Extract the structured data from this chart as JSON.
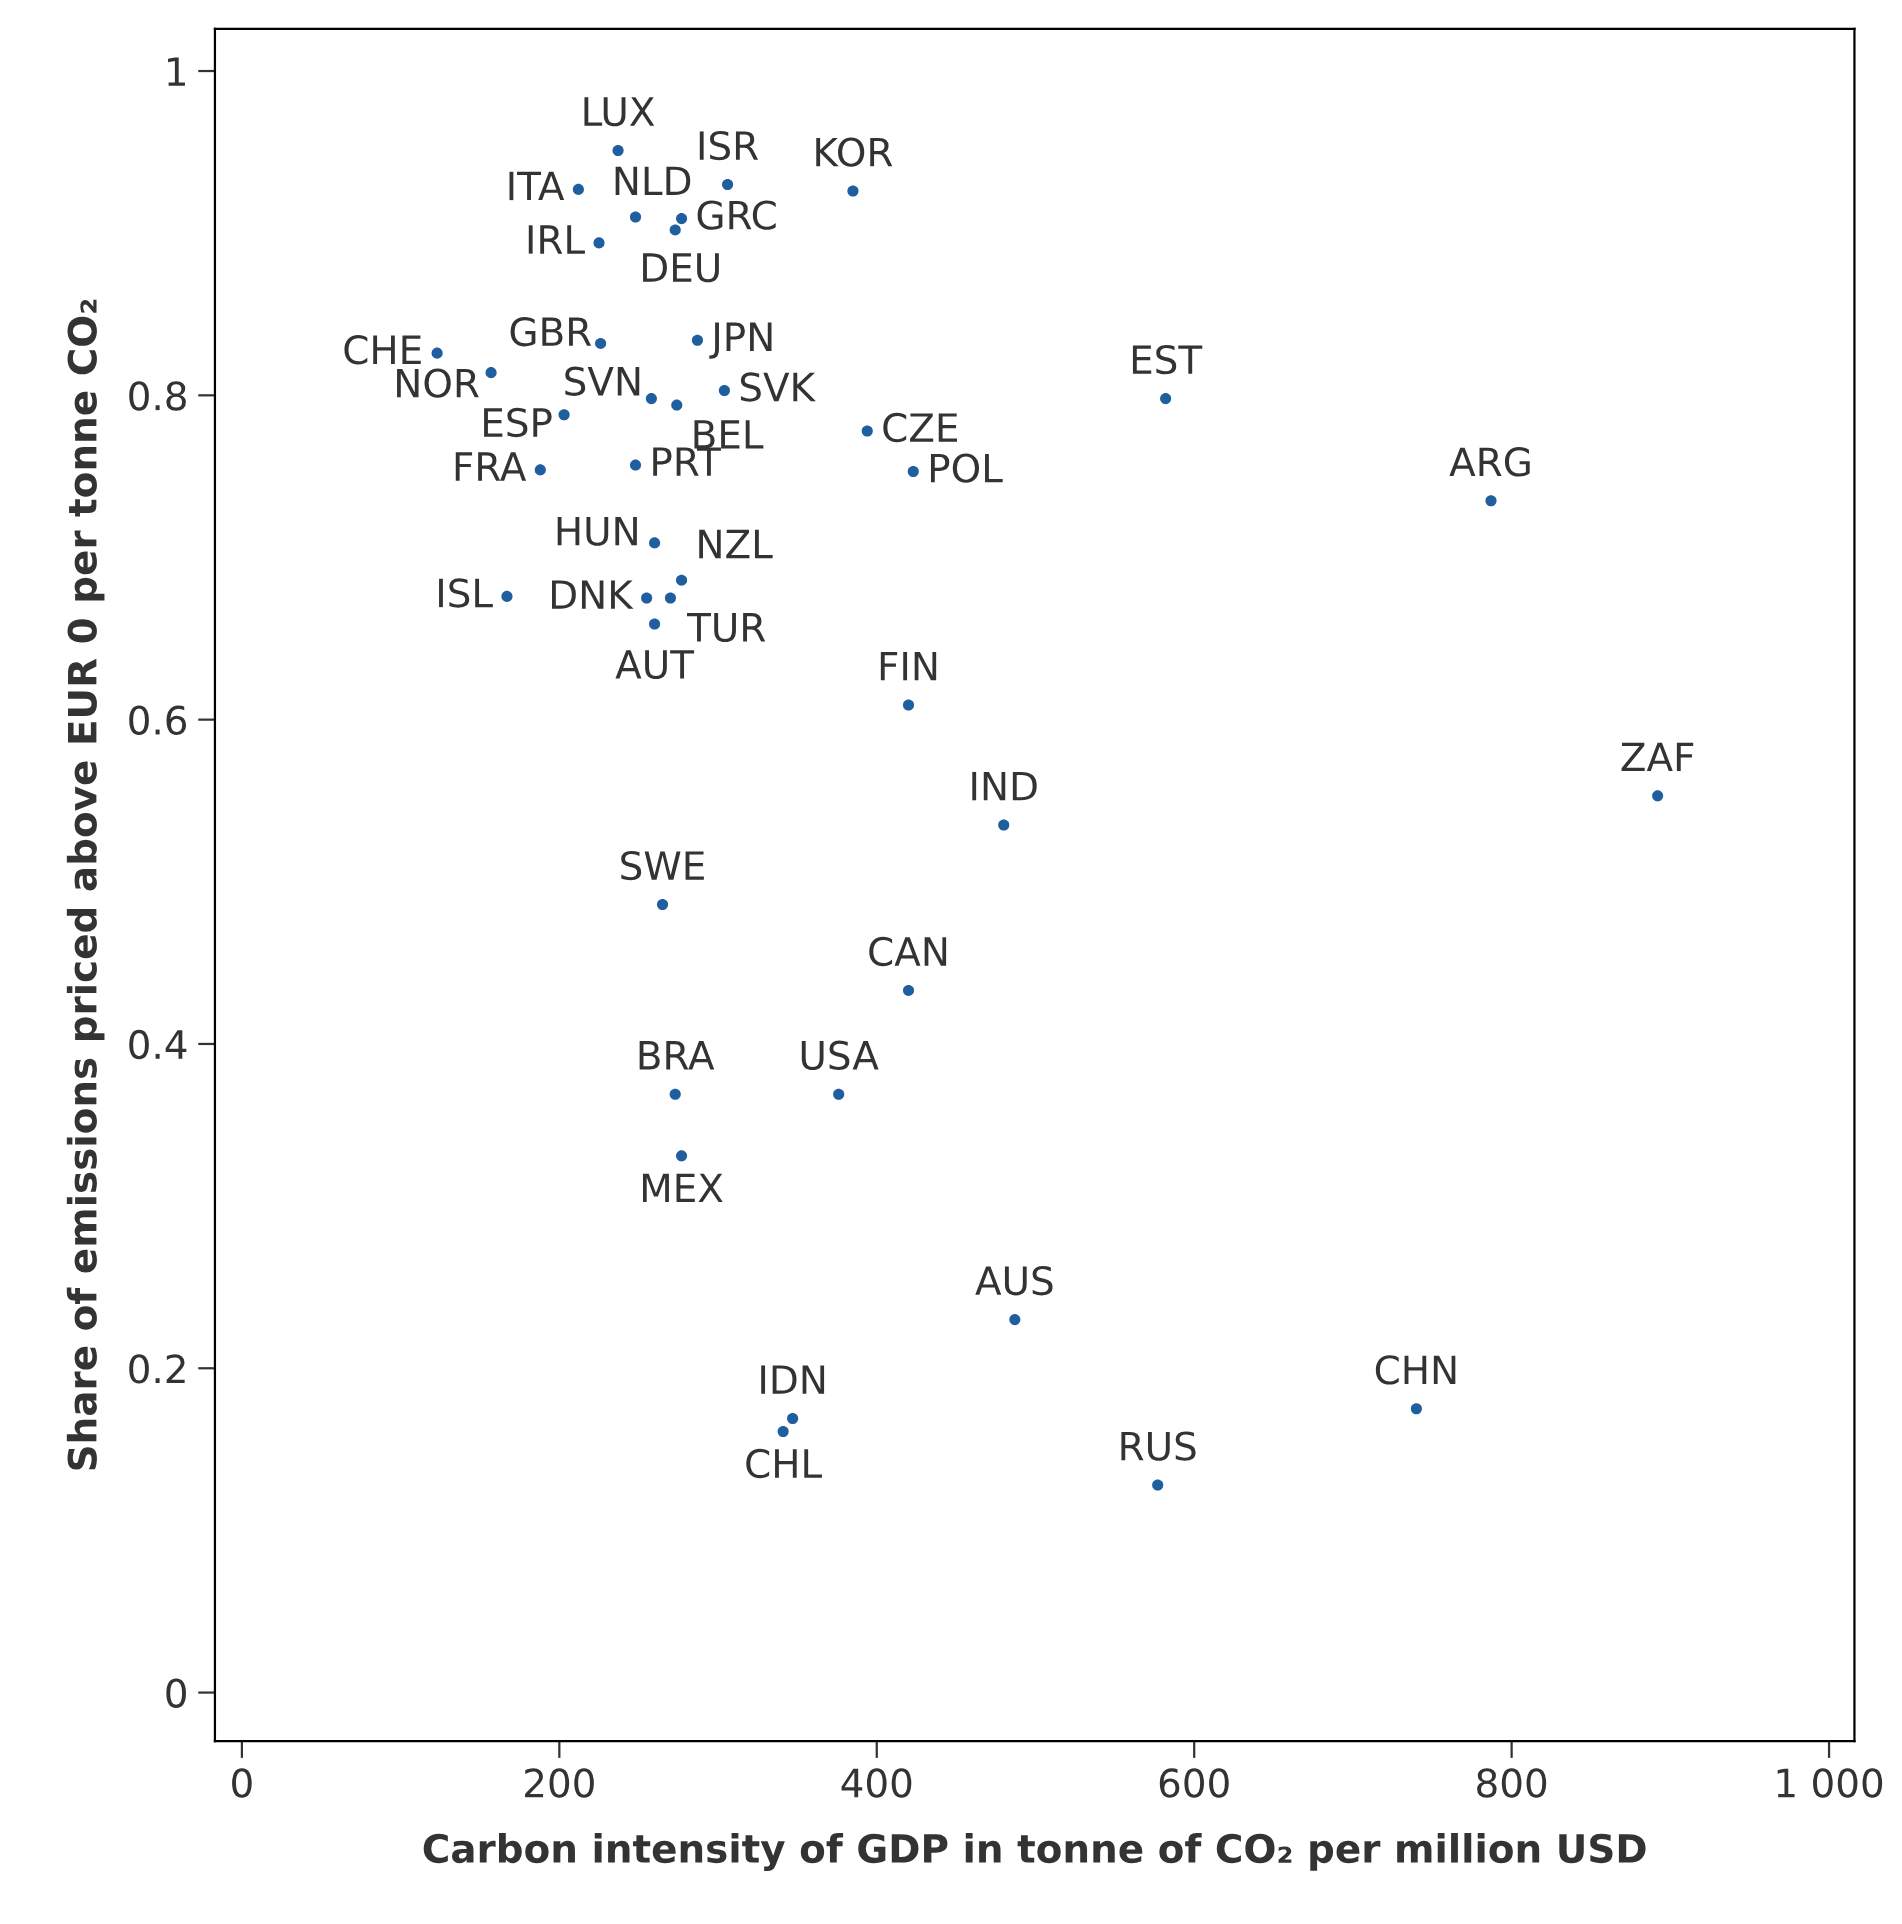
{
  "chart_data": {
    "type": "scatter",
    "xlabel": "Carbon intensity of GDP in tonne of CO₂ per million USD",
    "ylabel": "Share of emissions priced above EUR 0 per tonne CO₂",
    "marker": "circle",
    "xlim": [
      -17,
      1016
    ],
    "ylim": [
      -0.03,
      1.026
    ],
    "xticks": [
      0,
      200,
      400,
      600,
      800,
      {
        "value": 1000,
        "label": "1 000"
      }
    ],
    "yticks": [
      0,
      0.2,
      0.4,
      0.6,
      0.8,
      1
    ],
    "series": [
      {
        "color": "#1f5f9f",
        "x": [
          237,
          212,
          248,
          306,
          385,
          277,
          273,
          225,
          123,
          226,
          287,
          157,
          258,
          274,
          304,
          203,
          394,
          423,
          188,
          248,
          260,
          277,
          167,
          255,
          270,
          260,
          420,
          582,
          787,
          892,
          480,
          265,
          420,
          273,
          376,
          277,
          487,
          347,
          341,
          740,
          577
        ],
        "values": [
          0.951,
          0.927,
          0.91,
          0.93,
          0.926,
          0.909,
          0.902,
          0.894,
          0.826,
          0.832,
          0.834,
          0.814,
          0.798,
          0.794,
          0.803,
          0.788,
          0.778,
          0.753,
          0.754,
          0.757,
          0.709,
          0.686,
          0.676,
          0.675,
          0.675,
          0.659,
          0.609,
          0.798,
          0.735,
          0.553,
          0.535,
          0.486,
          0.433,
          0.369,
          0.369,
          0.331,
          0.23,
          0.169,
          0.161,
          0.175,
          0.128
        ]
      }
    ],
    "annotations": [
      {
        "text": "LUX",
        "x": 237,
        "y": 0.951
      },
      {
        "text": "ITA",
        "x": 212,
        "y": 0.927
      },
      {
        "text": "NLD",
        "x": 248,
        "y": 0.91
      },
      {
        "text": "ISR",
        "x": 306,
        "y": 0.93
      },
      {
        "text": "KOR",
        "x": 385,
        "y": 0.926
      },
      {
        "text": "GRC",
        "x": 277,
        "y": 0.909
      },
      {
        "text": "DEU",
        "x": 273,
        "y": 0.902
      },
      {
        "text": "IRL",
        "x": 225,
        "y": 0.894
      },
      {
        "text": "CHE",
        "x": 123,
        "y": 0.826
      },
      {
        "text": "GBR",
        "x": 226,
        "y": 0.832
      },
      {
        "text": "JPN",
        "x": 287,
        "y": 0.834
      },
      {
        "text": "NOR",
        "x": 157,
        "y": 0.814
      },
      {
        "text": "SVN",
        "x": 258,
        "y": 0.798
      },
      {
        "text": "BEL",
        "x": 274,
        "y": 0.794
      },
      {
        "text": "SVK",
        "x": 304,
        "y": 0.803
      },
      {
        "text": "ESP",
        "x": 203,
        "y": 0.788
      },
      {
        "text": "CZE",
        "x": 394,
        "y": 0.778
      },
      {
        "text": "POL",
        "x": 423,
        "y": 0.753
      },
      {
        "text": "FRA",
        "x": 188,
        "y": 0.754
      },
      {
        "text": "PRT",
        "x": 248,
        "y": 0.757
      },
      {
        "text": "HUN",
        "x": 260,
        "y": 0.709
      },
      {
        "text": "NZL",
        "x": 277,
        "y": 0.686
      },
      {
        "text": "ISL",
        "x": 167,
        "y": 0.676
      },
      {
        "text": "DNK",
        "x": 255,
        "y": 0.675
      },
      {
        "text": "TUR",
        "x": 270,
        "y": 0.675
      },
      {
        "text": "AUT",
        "x": 260,
        "y": 0.659
      },
      {
        "text": "FIN",
        "x": 420,
        "y": 0.609
      },
      {
        "text": "EST",
        "x": 582,
        "y": 0.798
      },
      {
        "text": "ARG",
        "x": 787,
        "y": 0.735
      },
      {
        "text": "ZAF",
        "x": 892,
        "y": 0.553
      },
      {
        "text": "IND",
        "x": 480,
        "y": 0.535
      },
      {
        "text": "SWE",
        "x": 265,
        "y": 0.486
      },
      {
        "text": "CAN",
        "x": 420,
        "y": 0.433
      },
      {
        "text": "BRA",
        "x": 273,
        "y": 0.369
      },
      {
        "text": "USA",
        "x": 376,
        "y": 0.369
      },
      {
        "text": "MEX",
        "x": 277,
        "y": 0.331
      },
      {
        "text": "AUS",
        "x": 487,
        "y": 0.23
      },
      {
        "text": "IDN",
        "x": 347,
        "y": 0.169
      },
      {
        "text": "CHL",
        "x": 341,
        "y": 0.161
      },
      {
        "text": "CHN",
        "x": 740,
        "y": 0.175
      },
      {
        "text": "RUS",
        "x": 577,
        "y": 0.128
      }
    ]
  }
}
